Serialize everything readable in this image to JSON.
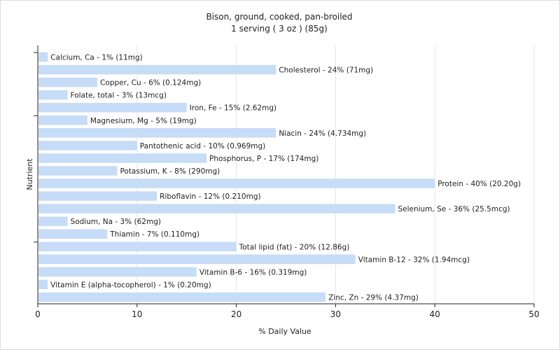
{
  "chart_data": {
    "type": "bar",
    "orientation": "horizontal",
    "title": "Bison, ground, cooked, pan-broiled",
    "subtitle": "1 serving ( 3 oz ) (85g)",
    "xlabel": "% Daily Value",
    "ylabel": "Nutrient",
    "xlim": [
      0,
      50
    ],
    "xticks": [
      "0",
      "10",
      "20",
      "30",
      "40",
      "50"
    ],
    "grid": true,
    "bar_color": "#c6dcf7",
    "categories": [
      "Calcium, Ca",
      "Cholesterol",
      "Copper, Cu",
      "Folate, total",
      "Iron, Fe",
      "Magnesium, Mg",
      "Niacin",
      "Pantothenic acid",
      "Phosphorus, P",
      "Potassium, K",
      "Protein",
      "Riboflavin",
      "Selenium, Se",
      "Sodium, Na",
      "Thiamin",
      "Total lipid (fat)",
      "Vitamin B-12",
      "Vitamin B-6",
      "Vitamin E (alpha-tocopherol)",
      "Zinc, Zn"
    ],
    "values": [
      1,
      24,
      6,
      3,
      15,
      5,
      24,
      10,
      17,
      8,
      40,
      12,
      36,
      3,
      7,
      20,
      32,
      16,
      1,
      29
    ],
    "labels": [
      "Calcium, Ca - 1% (11mg)",
      "Cholesterol - 24% (71mg)",
      "Copper, Cu - 6% (0.124mg)",
      "Folate, total - 3% (13mcg)",
      "Iron, Fe - 15% (2.62mg)",
      "Magnesium, Mg - 5% (19mg)",
      "Niacin - 24% (4.734mg)",
      "Pantothenic acid - 10% (0.969mg)",
      "Phosphorus, P - 17% (174mg)",
      "Potassium, K - 8% (290mg)",
      "Protein - 40% (20.20g)",
      "Riboflavin - 12% (0.210mg)",
      "Selenium, Se - 36% (25.5mcg)",
      "Sodium, Na - 3% (62mg)",
      "Thiamin - 7% (0.110mg)",
      "Total lipid (fat) - 20% (12.86g)",
      "Vitamin B-12 - 32% (1.94mcg)",
      "Vitamin B-6 - 16% (0.319mg)",
      "Vitamin E (alpha-tocopherol) - 1% (0.20mg)",
      "Zinc, Zn - 29% (4.37mg)"
    ]
  }
}
